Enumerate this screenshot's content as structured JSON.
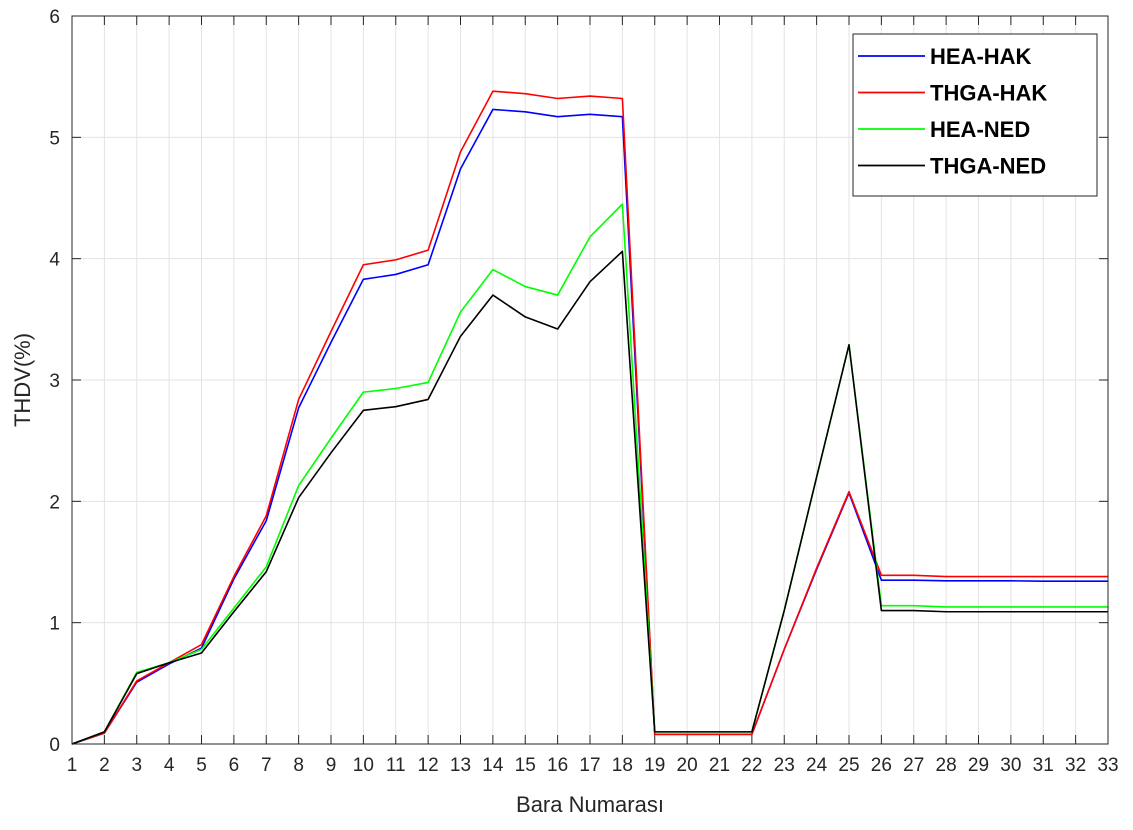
{
  "chart_data": {
    "type": "line",
    "title": "",
    "xlabel": "Bara Numarası",
    "ylabel": "THDV(%)",
    "xlim": [
      1,
      33
    ],
    "ylim": [
      0,
      6
    ],
    "x_ticks": [
      "1",
      "2",
      "3",
      "4",
      "5",
      "6",
      "7",
      "8",
      "9",
      "10",
      "11",
      "12",
      "13",
      "14",
      "15",
      "16",
      "17",
      "18",
      "19",
      "20",
      "21",
      "22",
      "23",
      "24",
      "25",
      "26",
      "27",
      "28",
      "29",
      "30",
      "31",
      "32",
      "33"
    ],
    "y_ticks": [
      "0",
      "1",
      "2",
      "3",
      "4",
      "5",
      "6"
    ],
    "grid": true,
    "legend_position": "top-right",
    "x": [
      1,
      2,
      3,
      4,
      5,
      6,
      7,
      8,
      9,
      10,
      11,
      12,
      13,
      14,
      15,
      16,
      17,
      18,
      19,
      20,
      21,
      22,
      23,
      24,
      25,
      26,
      27,
      28,
      29,
      30,
      31,
      32,
      33
    ],
    "series": [
      {
        "name": "HEA-HAK",
        "color": "#0000ff",
        "values": [
          0,
          0.09,
          0.51,
          0.66,
          0.79,
          1.36,
          1.84,
          2.77,
          3.31,
          3.83,
          3.87,
          3.95,
          4.74,
          5.23,
          5.21,
          5.17,
          5.19,
          5.17,
          0.08,
          0.08,
          0.08,
          0.08,
          0.78,
          1.44,
          2.07,
          1.35,
          1.35,
          1.345,
          1.345,
          1.345,
          1.342,
          1.342,
          1.342
        ]
      },
      {
        "name": "THGA-HAK",
        "color": "#ff0000",
        "values": [
          0,
          0.09,
          0.52,
          0.67,
          0.82,
          1.38,
          1.88,
          2.84,
          3.4,
          3.95,
          3.99,
          4.07,
          4.88,
          5.38,
          5.36,
          5.32,
          5.34,
          5.32,
          0.08,
          0.08,
          0.08,
          0.08,
          0.78,
          1.45,
          2.08,
          1.39,
          1.39,
          1.38,
          1.38,
          1.38,
          1.38,
          1.38,
          1.38
        ]
      },
      {
        "name": "HEA-NED",
        "color": "#00ff00",
        "values": [
          0,
          0.1,
          0.59,
          0.67,
          0.78,
          1.12,
          1.46,
          2.13,
          2.52,
          2.9,
          2.93,
          2.98,
          3.56,
          3.91,
          3.77,
          3.7,
          4.18,
          4.45,
          0.1,
          0.1,
          0.1,
          0.1,
          1.1,
          2.2,
          3.29,
          1.14,
          1.14,
          1.13,
          1.13,
          1.13,
          1.13,
          1.13,
          1.13
        ]
      },
      {
        "name": "THGA-NED",
        "color": "#000000",
        "values": [
          0,
          0.1,
          0.58,
          0.67,
          0.75,
          1.09,
          1.42,
          2.03,
          2.4,
          2.75,
          2.78,
          2.84,
          3.36,
          3.7,
          3.52,
          3.42,
          3.81,
          4.06,
          0.1,
          0.1,
          0.1,
          0.1,
          1.1,
          2.2,
          3.29,
          1.1,
          1.1,
          1.09,
          1.09,
          1.09,
          1.09,
          1.09,
          1.09
        ]
      }
    ]
  }
}
